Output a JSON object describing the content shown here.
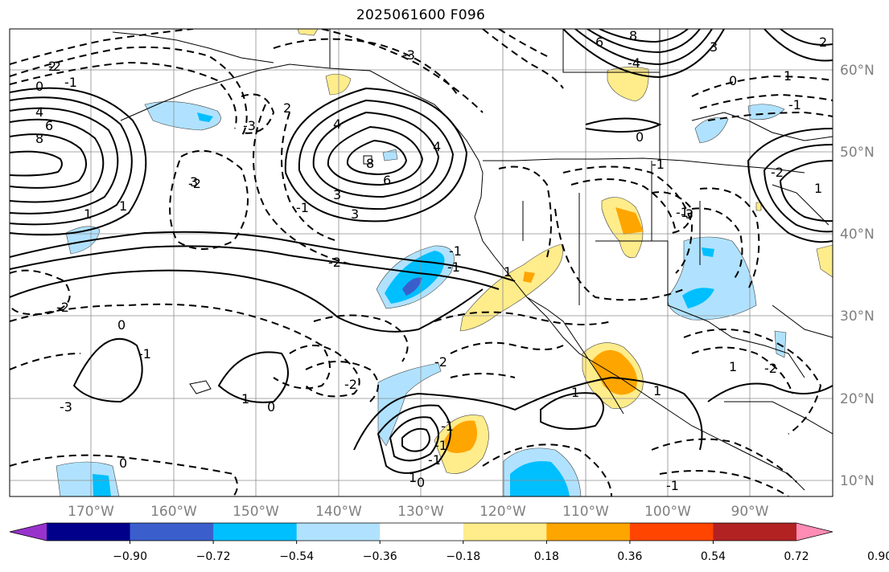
{
  "title": "2025061600 F096",
  "lat_labels": [
    "60°N",
    "50°N",
    "40°N",
    "30°N",
    "20°N",
    "10°N"
  ],
  "lon_labels": [
    "170°W",
    "160°W",
    "150°W",
    "140°W",
    "130°W",
    "120°W",
    "110°W",
    "100°W",
    "90°W"
  ],
  "colorbar": {
    "tick_labels": [
      "−0.90",
      "−0.72",
      "−0.54",
      "−0.36",
      "−0.18",
      "0.18",
      "0.36",
      "0.54",
      "0.72",
      "0.90"
    ],
    "colors": [
      "#9932cc",
      "#00008b",
      "#3a5fcd",
      "#00bfff",
      "#b0e2ff",
      "#ffffff",
      "#ffec8b",
      "#ffa500",
      "#ff4500",
      "#b22222",
      "#ff8cb4"
    ]
  },
  "contour_labels": [
    "2",
    "0",
    "4",
    "6",
    "8",
    "-1",
    "1",
    "-2",
    "2",
    "-3",
    "4",
    "6",
    "8",
    "3",
    "-3",
    "-2",
    "1",
    "-1",
    "3",
    "-2",
    "-3",
    "-1",
    "-2",
    "-2",
    "0",
    "1",
    "-1",
    "-1",
    "1",
    "-1",
    "0",
    "0",
    "1",
    "0",
    "-1",
    "-2",
    "1",
    "1",
    "-1",
    "-1",
    "1",
    "6",
    "8",
    "-4",
    "3",
    "0",
    "1",
    "-1",
    "2",
    "-2",
    "-1",
    "-1",
    "-3",
    "0",
    "1",
    "3",
    "4",
    "-2"
  ],
  "colors": {
    "grid": "#8c8c8c",
    "axis_text": "#7f7f7f",
    "coast": "#000000"
  }
}
